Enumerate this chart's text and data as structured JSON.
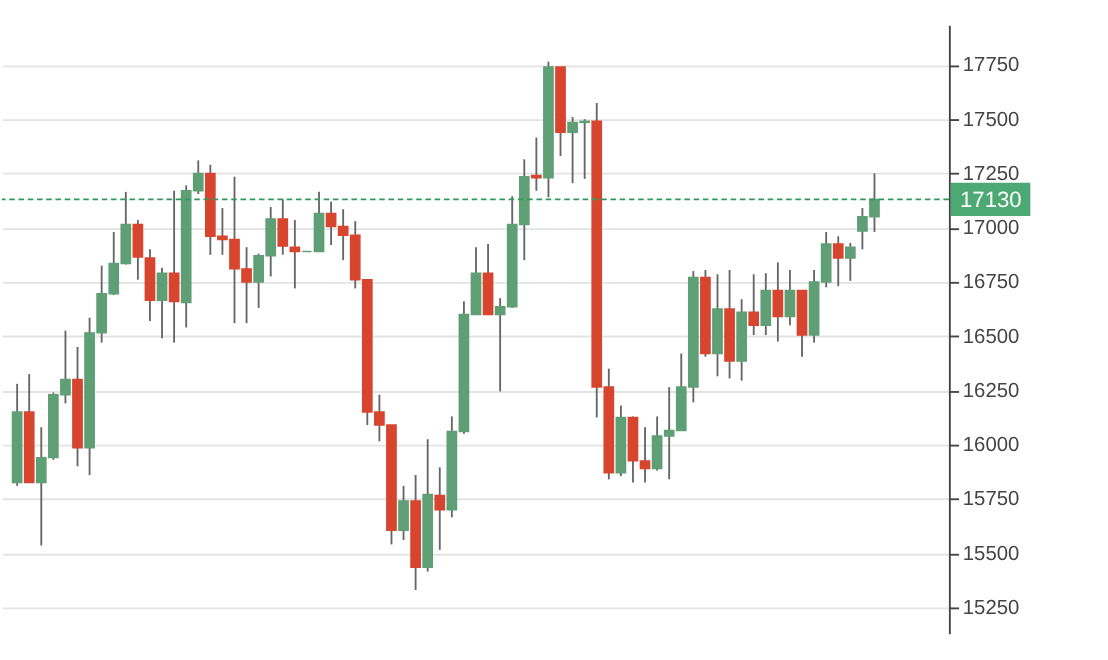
{
  "chart_data": {
    "type": "candlestick",
    "categories": [
      null,
      null,
      null,
      null,
      null,
      null,
      null,
      null,
      null,
      null,
      null,
      null,
      null,
      null,
      null,
      null,
      null,
      null,
      null,
      null,
      null,
      null,
      null,
      null,
      null,
      null,
      null,
      null,
      null,
      null,
      null,
      null,
      null,
      null,
      null,
      null,
      null,
      null,
      null,
      null,
      null,
      null,
      null,
      null,
      null,
      null,
      null,
      null,
      null,
      null,
      null,
      null,
      null,
      null,
      null,
      null,
      null,
      null,
      null,
      null,
      null,
      null,
      null,
      null,
      null,
      null,
      null,
      null,
      null,
      null,
      null,
      null
    ],
    "ohlc": [
      [
        15825,
        16280,
        15810,
        16150
      ],
      [
        16150,
        16325,
        15825,
        15825
      ],
      [
        15825,
        16080,
        15535,
        15940
      ],
      [
        15940,
        16240,
        15930,
        16230
      ],
      [
        16230,
        16525,
        16190,
        16300
      ],
      [
        16300,
        16450,
        15900,
        15985
      ],
      [
        15985,
        16585,
        15860,
        16515
      ],
      [
        16515,
        16825,
        16470,
        16695
      ],
      [
        16695,
        16980,
        16690,
        16835
      ],
      [
        16835,
        17165,
        16830,
        17015
      ],
      [
        17015,
        17035,
        16760,
        16865
      ],
      [
        16860,
        16900,
        16570,
        16665
      ],
      [
        16665,
        16815,
        16490,
        16790
      ],
      [
        16790,
        17170,
        16470,
        16660
      ],
      [
        16655,
        17195,
        16540,
        17170
      ],
      [
        17170,
        17310,
        17155,
        17250
      ],
      [
        17250,
        17290,
        16875,
        16960
      ],
      [
        16960,
        17090,
        16875,
        16945
      ],
      [
        16945,
        17235,
        16560,
        16810
      ],
      [
        16810,
        16910,
        16560,
        16750
      ],
      [
        16750,
        16880,
        16630,
        16870
      ],
      [
        16870,
        17095,
        16775,
        17040
      ],
      [
        17040,
        17130,
        16875,
        16915
      ],
      [
        16910,
        17035,
        16720,
        16890
      ],
      [
        16890,
        16890,
        16890,
        16890
      ],
      [
        16890,
        17165,
        16890,
        17065
      ],
      [
        17065,
        17120,
        16920,
        17005
      ],
      [
        17005,
        17085,
        16850,
        16965
      ],
      [
        16965,
        17030,
        16720,
        16760
      ],
      [
        16760,
        16760,
        16090,
        16150
      ],
      [
        16150,
        16230,
        16015,
        16090
      ],
      [
        16090,
        16090,
        15540,
        15605
      ],
      [
        15605,
        15810,
        15560,
        15740
      ],
      [
        15740,
        15860,
        15330,
        15435
      ],
      [
        15435,
        16025,
        15415,
        15770
      ],
      [
        15765,
        15895,
        15515,
        15700
      ],
      [
        15700,
        16130,
        15665,
        16060
      ],
      [
        16060,
        16660,
        16050,
        16600
      ],
      [
        16600,
        16910,
        16600,
        16790
      ],
      [
        16790,
        16925,
        16600,
        16600
      ],
      [
        16600,
        16675,
        16245,
        16635
      ],
      [
        16635,
        17145,
        16630,
        17015
      ],
      [
        17015,
        17315,
        16850,
        17235
      ],
      [
        17240,
        17415,
        17170,
        17230
      ],
      [
        17230,
        17765,
        17140,
        17740
      ],
      [
        17740,
        17740,
        17330,
        17440
      ],
      [
        17440,
        17510,
        17205,
        17485
      ],
      [
        17485,
        17500,
        17225,
        17490
      ],
      [
        17490,
        17575,
        16125,
        16265
      ],
      [
        16265,
        16350,
        15840,
        15870
      ],
      [
        15870,
        16180,
        15855,
        16125
      ],
      [
        16125,
        16130,
        15825,
        15925
      ],
      [
        15925,
        16080,
        15825,
        15890
      ],
      [
        15890,
        16130,
        15880,
        16040
      ],
      [
        16040,
        16265,
        15840,
        16065
      ],
      [
        16065,
        16420,
        16065,
        16265
      ],
      [
        16265,
        16800,
        16195,
        16770
      ],
      [
        16770,
        16805,
        16405,
        16420
      ],
      [
        16420,
        16785,
        16315,
        16625
      ],
      [
        16625,
        16805,
        16305,
        16385
      ],
      [
        16385,
        16670,
        16295,
        16610
      ],
      [
        16610,
        16785,
        16505,
        16550
      ],
      [
        16550,
        16790,
        16505,
        16710
      ],
      [
        16710,
        16840,
        16475,
        16590
      ],
      [
        16590,
        16805,
        16550,
        16710
      ],
      [
        16710,
        16710,
        16405,
        16505
      ],
      [
        16505,
        16805,
        16470,
        16750
      ],
      [
        16750,
        16980,
        16725,
        16925
      ],
      [
        16925,
        16960,
        16730,
        16860
      ],
      [
        16860,
        16930,
        16755,
        16910
      ],
      [
        16985,
        17090,
        16900,
        17050
      ],
      [
        17050,
        17250,
        16980,
        17130
      ]
    ],
    "colors": [
      "#5f9f76",
      "#d8452f",
      "#5f9f76",
      "#5f9f76",
      "#5f9f76",
      "#d8452f",
      "#5f9f76",
      "#5f9f76",
      "#5f9f76",
      "#5f9f76",
      "#d8452f",
      "#d8452f",
      "#5f9f76",
      "#d8452f",
      "#5f9f76",
      "#5f9f76",
      "#d8452f",
      "#d8452f",
      "#d8452f",
      "#d8452f",
      "#5f9f76",
      "#5f9f76",
      "#d8452f",
      "#d8452f",
      "#5f9f76",
      "#5f9f76",
      "#d8452f",
      "#d8452f",
      "#d8452f",
      "#d8452f",
      "#d8452f",
      "#d8452f",
      "#5f9f76",
      "#d8452f",
      "#5f9f76",
      "#d8452f",
      "#5f9f76",
      "#5f9f76",
      "#5f9f76",
      "#d8452f",
      "#5f9f76",
      "#5f9f76",
      "#5f9f76",
      "#d8452f",
      "#5f9f76",
      "#d8452f",
      "#5f9f76",
      "#5f9f76",
      "#d8452f",
      "#d8452f",
      "#5f9f76",
      "#d8452f",
      "#d8452f",
      "#5f9f76",
      "#5f9f76",
      "#5f9f76",
      "#5f9f76",
      "#d8452f",
      "#5f9f76",
      "#d8452f",
      "#5f9f76",
      "#d8452f",
      "#5f9f76",
      "#d8452f",
      "#5f9f76",
      "#d8452f",
      "#5f9f76",
      "#5f9f76",
      "#d8452f",
      "#5f9f76",
      "#5f9f76",
      "#5f9f76"
    ],
    "ylim": [
      15130,
      17935
    ],
    "yticks": [
      15250,
      15500,
      15750,
      16000,
      16250,
      16500,
      16750,
      17000,
      17250,
      17500,
      17750
    ],
    "ref_lines": [
      {
        "axis": "y",
        "value": 17130,
        "label": "17130",
        "color": "#2e9a5c",
        "line_style": "dashed"
      }
    ],
    "grid": "y",
    "tick_labels": "y"
  }
}
